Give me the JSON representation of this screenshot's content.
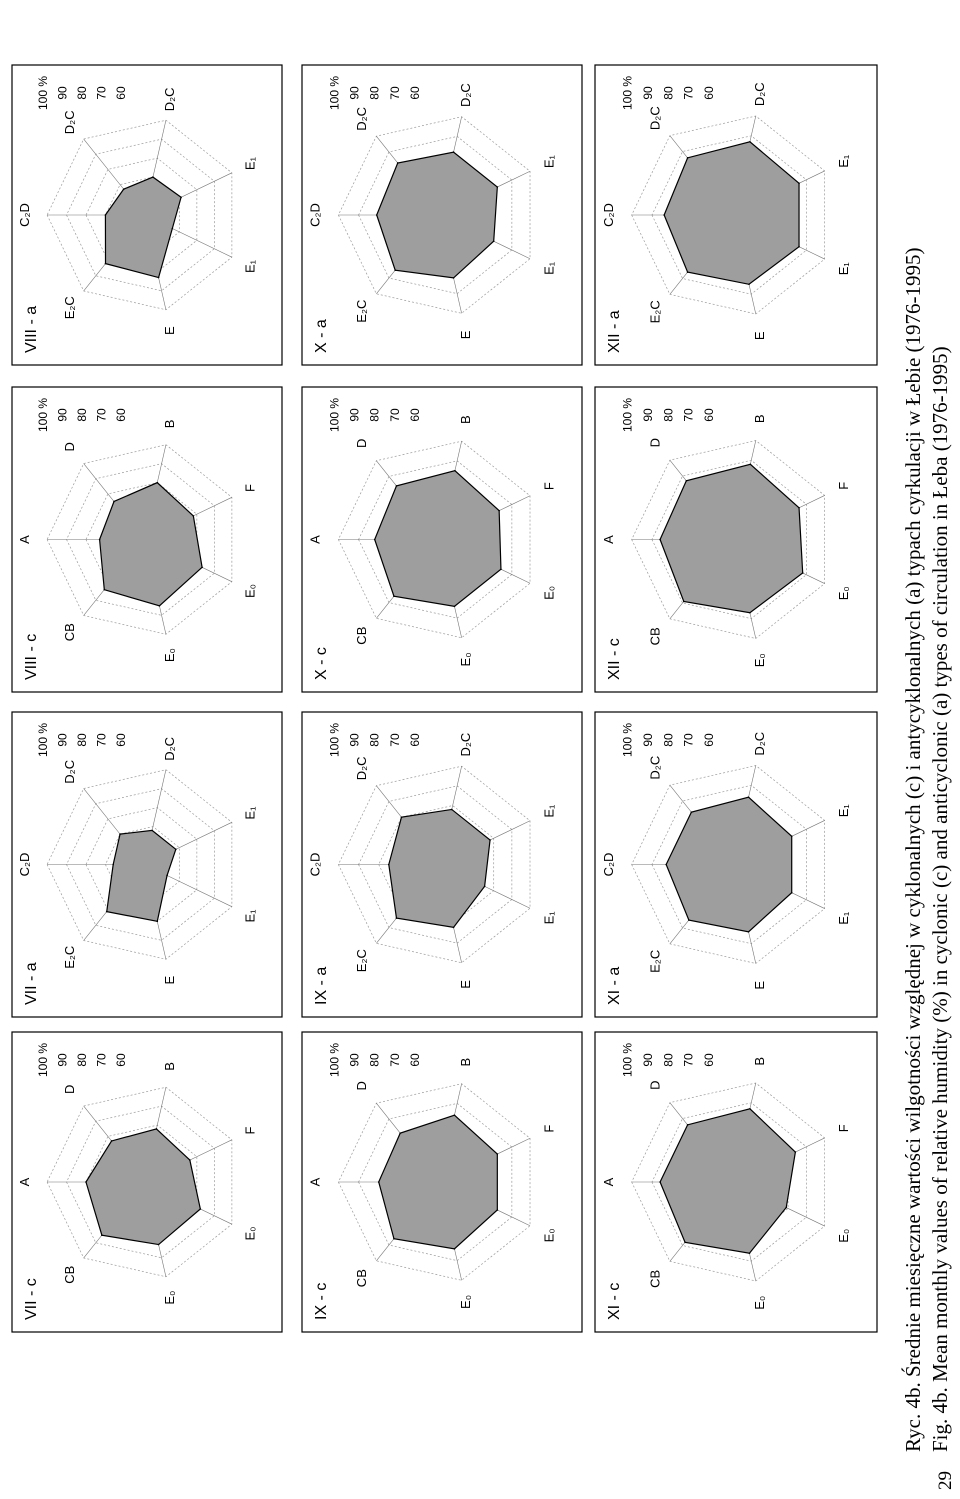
{
  "page_number": "29",
  "caption": {
    "pl": "Ryc. 4b. Średnie miesięczne wartości wilgotności względnej w cyklonalnych (c) i antycyklonalnych (a) typach cyrkulacji w Łebie (1976-1995)",
    "en": "Fig. 4b. Mean monthly values of relative humidity (%) in cyclonic (c) and anticyclonic (a) types of circulation in Łeba (1976-1995)"
  },
  "chart_data": [
    {
      "type": "radar",
      "title": "VIII - c",
      "axes": [
        "A",
        "CB",
        "E₀",
        "E₀",
        "F",
        "B",
        "D"
      ],
      "ring_labels": [
        "60",
        "70",
        "80",
        "90",
        "100 %"
      ],
      "range": [
        50,
        100
      ],
      "values": [
        73,
        83,
        85,
        83,
        78,
        80,
        75
      ]
    },
    {
      "type": "radar",
      "title": "VIII - a",
      "axes": [
        "C₂D",
        "E₂C",
        "E",
        "E₁",
        "E₁",
        "D₂C",
        "D₂C"
      ],
      "ring_labels": [
        "60",
        "70",
        "80",
        "90",
        "100 %"
      ],
      "range": [
        50,
        100
      ],
      "values": [
        70,
        82,
        83,
        66,
        71,
        70,
        67
      ]
    },
    {
      "type": "radar",
      "title": "VII - c",
      "axes": [
        "A",
        "CB",
        "E₀",
        "E₀",
        "F",
        "B",
        "D"
      ],
      "ring_labels": [
        "60",
        "70",
        "80",
        "90",
        "100 %"
      ],
      "range": [
        50,
        100
      ],
      "values": [
        80,
        85,
        83,
        82,
        76,
        78,
        77
      ]
    },
    {
      "type": "radar",
      "title": "VII - a",
      "axes": [
        "C₂D",
        "E₂C",
        "E",
        "E₁",
        "E₁",
        "D₂C",
        "D₂C"
      ],
      "ring_labels": [
        "60",
        "70",
        "80",
        "90",
        "100 %"
      ],
      "range": [
        50,
        100
      ],
      "values": [
        66,
        81,
        80,
        63,
        68,
        68,
        70
      ]
    },
    {
      "type": "radar",
      "title": "X - c",
      "axes": [
        "A",
        "CB",
        "E₀",
        "E₀",
        "F",
        "B",
        "D"
      ],
      "ring_labels": [
        "60",
        "70",
        "80",
        "90",
        "100 %"
      ],
      "range": [
        50,
        100
      ],
      "values": [
        82,
        86,
        84,
        84,
        83,
        85,
        84
      ]
    },
    {
      "type": "radar",
      "title": "X - a",
      "axes": [
        "C₂D",
        "E₂C",
        "E",
        "E₁",
        "E₁",
        "D₂C",
        "D₂C"
      ],
      "ring_labels": [
        "60",
        "70",
        "80",
        "90",
        "100 %"
      ],
      "range": [
        50,
        100
      ],
      "values": [
        81,
        85,
        82,
        80,
        82,
        82,
        83
      ]
    },
    {
      "type": "radar",
      "title": "IX - c",
      "axes": [
        "A",
        "CB",
        "E₀",
        "E₀",
        "F",
        "B",
        "D"
      ],
      "ring_labels": [
        "60",
        "70",
        "80",
        "90",
        "100 %"
      ],
      "range": [
        50,
        100
      ],
      "values": [
        80,
        86,
        84,
        82,
        82,
        84,
        81
      ]
    },
    {
      "type": "radar",
      "title": "IX - a",
      "axes": [
        "C₂D",
        "E₂C",
        "E",
        "E₁",
        "E₁",
        "D₂C",
        "D₂C"
      ],
      "ring_labels": [
        "60",
        "70",
        "80",
        "90",
        "100 %"
      ],
      "range": [
        50,
        100
      ],
      "values": [
        75,
        84,
        82,
        75,
        78,
        78,
        80
      ]
    },
    {
      "type": "radar",
      "title": "XII - c",
      "axes": [
        "A",
        "CB",
        "E₀",
        "E₀",
        "F",
        "B",
        "D"
      ],
      "ring_labels": [
        "60",
        "70",
        "80",
        "90",
        "100 %"
      ],
      "range": [
        50,
        100
      ],
      "values": [
        86,
        89,
        87,
        88,
        86,
        88,
        87
      ]
    },
    {
      "type": "radar",
      "title": "XII - a",
      "axes": [
        "C₂D",
        "E₂C",
        "E",
        "E₁",
        "E₁",
        "D₂C",
        "D₂C"
      ],
      "ring_labels": [
        "60",
        "70",
        "80",
        "90",
        "100 %"
      ],
      "range": [
        50,
        100
      ],
      "values": [
        84,
        86,
        85,
        86,
        86,
        87,
        86
      ]
    },
    {
      "type": "radar",
      "title": "XI - c",
      "axes": [
        "A",
        "CB",
        "E₀",
        "E₀",
        "F",
        "B",
        "D"
      ],
      "ring_labels": [
        "60",
        "70",
        "80",
        "90",
        "100 %"
      ],
      "range": [
        50,
        100
      ],
      "values": [
        86,
        88,
        86,
        79,
        84,
        87,
        86
      ]
    },
    {
      "type": "radar",
      "title": "XI - a",
      "axes": [
        "C₂D",
        "E₂C",
        "E",
        "E₁",
        "E₁",
        "D₂C",
        "D₂C"
      ],
      "ring_labels": [
        "60",
        "70",
        "80",
        "90",
        "100 %"
      ],
      "range": [
        50,
        100
      ],
      "values": [
        83,
        85,
        84,
        82,
        82,
        84,
        83
      ]
    }
  ]
}
